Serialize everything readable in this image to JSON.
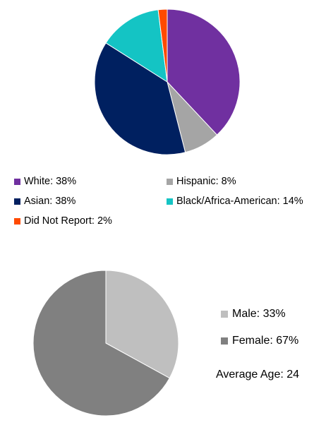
{
  "chart_data": [
    {
      "type": "pie",
      "title": "",
      "legend_position": "bottom",
      "slices": [
        {
          "label": "White",
          "value": 38,
          "color": "#7030A0",
          "legend_text": "White: 38%"
        },
        {
          "label": "Hispanic",
          "value": 8,
          "color": "#A5A5A5",
          "legend_text": "Hispanic: 8%"
        },
        {
          "label": "Asian",
          "value": 38,
          "color": "#002060",
          "legend_text": "Asian: 38%"
        },
        {
          "label": "Black/Africa-American",
          "value": 14,
          "color": "#14C4C4",
          "legend_text": "Black/Africa-American: 14%"
        },
        {
          "label": "Did Not Report",
          "value": 2,
          "color": "#FF4A00",
          "legend_text": "Did Not Report: 2%"
        }
      ]
    },
    {
      "type": "pie",
      "title": "",
      "legend_position": "right",
      "slices": [
        {
          "label": "Male",
          "value": 33,
          "color": "#BFBFBF",
          "legend_text": "Male: 33%"
        },
        {
          "label": "Female",
          "value": 67,
          "color": "#808080",
          "legend_text": "Female: 67%"
        }
      ],
      "annotation": "Average Age: 24"
    }
  ]
}
